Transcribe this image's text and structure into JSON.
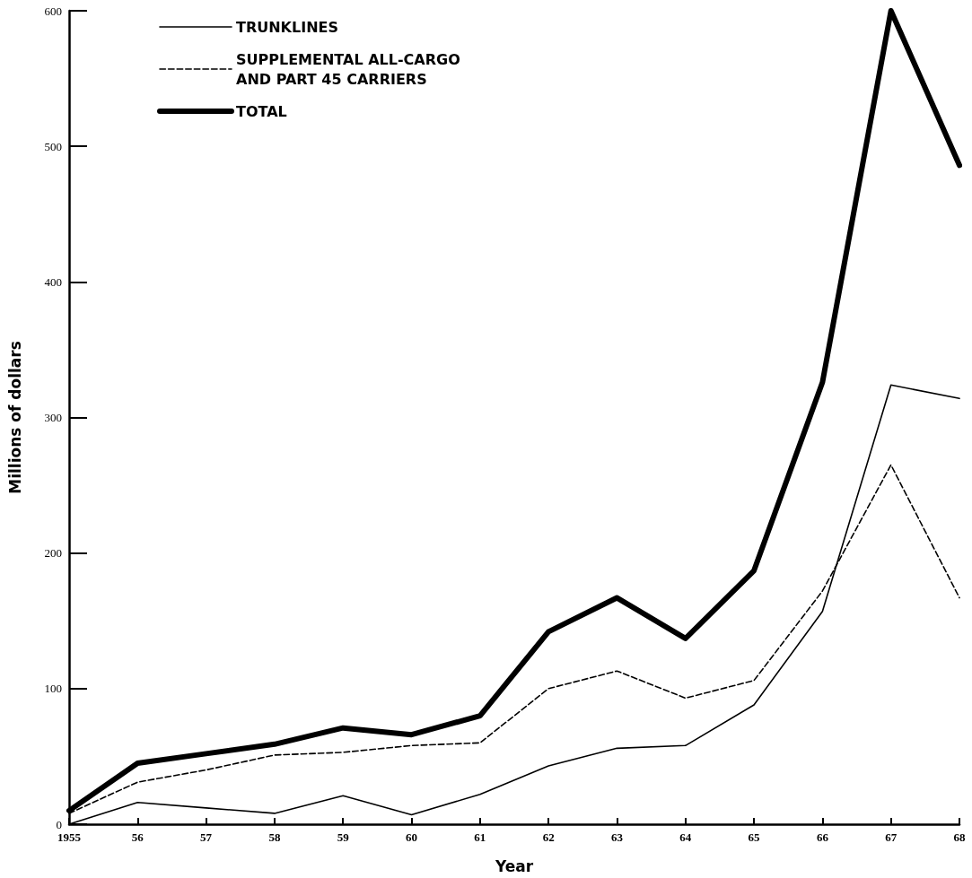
{
  "chart_data": {
    "type": "line",
    "xlabel": "Year",
    "ylabel": "Millions of dollars",
    "categories": [
      "1955",
      "56",
      "57",
      "58",
      "59",
      "60",
      "61",
      "62",
      "63",
      "64",
      "65",
      "66",
      "67",
      "68"
    ],
    "series": [
      {
        "name": "TRUNKLINES",
        "color": "#000000",
        "line_style": "solid",
        "values": [
          0,
          16,
          12,
          8,
          21,
          7,
          22,
          43,
          56,
          58,
          88,
          157,
          324,
          314
        ]
      },
      {
        "name": "SUPPLEMENTAL ALL-CARGO\nAND PART 45 CARRIERS",
        "color": "#000000",
        "line_style": "dashed",
        "values": [
          8,
          31,
          40,
          51,
          53,
          58,
          60,
          100,
          113,
          93,
          106,
          172,
          265,
          167
        ]
      },
      {
        "name": "TOTAL",
        "color": "#000000",
        "line_style": "solid",
        "values": [
          10,
          45,
          52,
          59,
          71,
          66,
          80,
          142,
          167,
          137,
          187,
          326,
          600,
          486
        ]
      }
    ],
    "ylim": [
      0,
      600
    ],
    "yticks": [
      0,
      100,
      200,
      300,
      400,
      500,
      600
    ],
    "grid": false,
    "legend": "top left",
    "marker": "none"
  }
}
